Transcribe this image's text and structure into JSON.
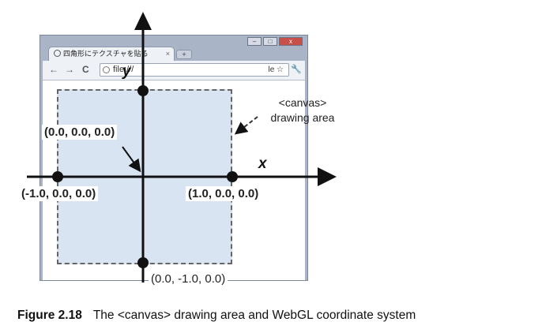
{
  "browser": {
    "tab_title": "四角形にテクスチャを貼る",
    "tab_close": "×",
    "new_tab": "+",
    "back": "←",
    "forward": "→",
    "reload": "C",
    "url": "file:///",
    "url_suffix": "le ☆",
    "menu": "🔧",
    "minimize": "–",
    "maximize": "□",
    "close": "x"
  },
  "axes": {
    "x_label": "x",
    "y_label": "y"
  },
  "points": {
    "origin": "(0.0, 0.0, 0.0)",
    "left": "(-1.0, 0.0, 0.0)",
    "right": "(1.0, 0.0, 0.0)",
    "bottom": "(0.0, -1.0, 0.0)"
  },
  "annotation": {
    "line1": "<canvas>",
    "line2": "drawing area"
  },
  "caption": {
    "figure_number": "Figure 2.18",
    "text": "The <canvas> drawing area and WebGL coordinate system"
  }
}
